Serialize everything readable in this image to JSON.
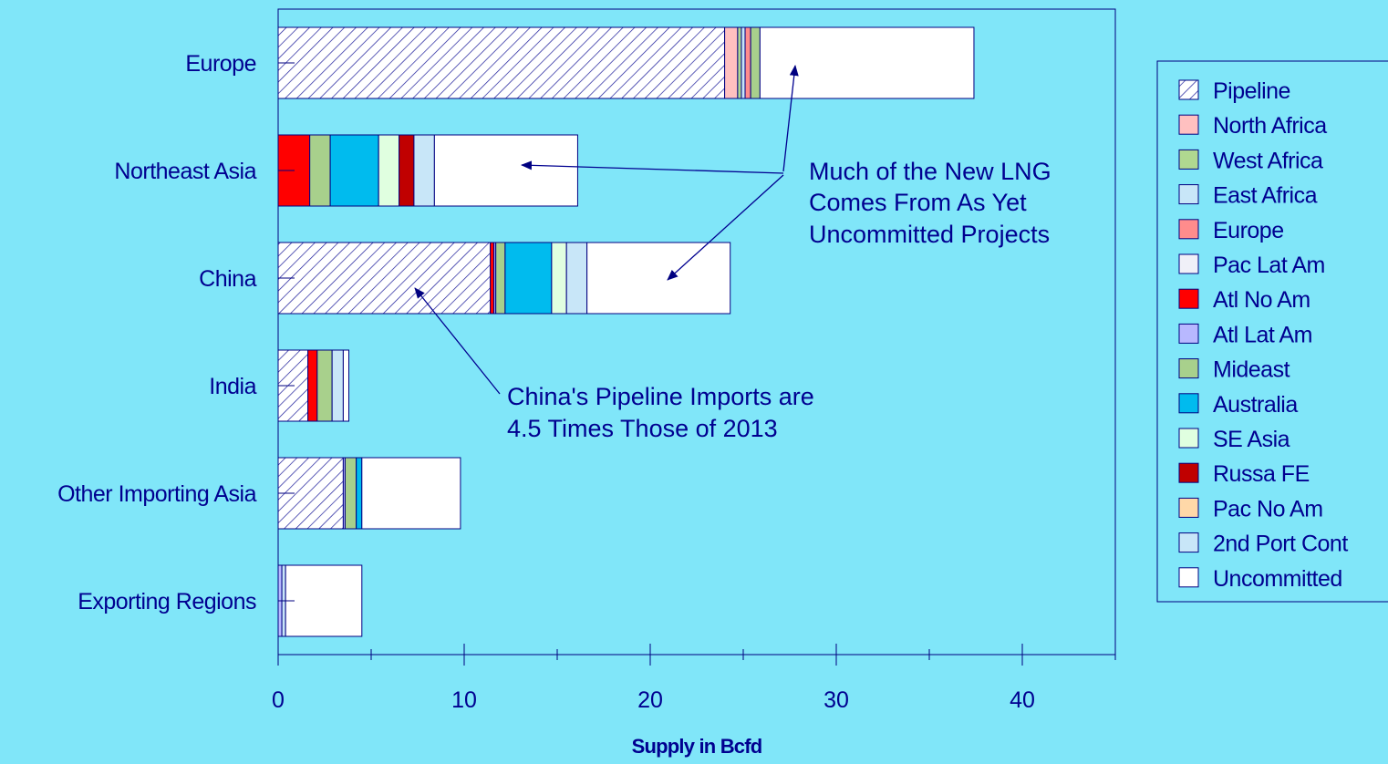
{
  "chart_data": {
    "type": "bar",
    "orientation": "horizontal",
    "stacked": true,
    "title": "",
    "xlabel": "Supply in Bcfd",
    "ylabel": "",
    "xlim": [
      0,
      45
    ],
    "x_ticks": [
      0,
      10,
      20,
      30,
      40
    ],
    "x_tick_labels": [
      "0",
      "10",
      "20",
      "30",
      "40"
    ],
    "grid": false,
    "legend_position": "right",
    "categories": [
      "Europe",
      "Northeast Asia",
      "China",
      "India",
      "Other Importing Asia",
      "Exporting Regions"
    ],
    "series": [
      {
        "name": "Pipeline",
        "color": "#FFFFFF",
        "pattern": "hatch",
        "values": [
          24.0,
          0,
          11.4,
          1.6,
          3.5,
          0
        ]
      },
      {
        "name": "North Africa",
        "color": "#FFC0C0",
        "values": [
          0.7,
          0,
          0,
          0,
          0,
          0
        ]
      },
      {
        "name": "West Africa",
        "color": "#B0D890",
        "values": [
          0.2,
          0,
          0,
          0,
          0,
          0
        ]
      },
      {
        "name": "East Africa",
        "color": "#C8E6F8",
        "values": [
          0.2,
          0,
          0,
          0,
          0,
          0
        ]
      },
      {
        "name": "Europe",
        "color": "#FF8C8C",
        "values": [
          0.3,
          0,
          0,
          0,
          0,
          0
        ]
      },
      {
        "name": "Pac Lat Am",
        "color": "#F0F0F8",
        "values": [
          0,
          0,
          0,
          0,
          0,
          0
        ]
      },
      {
        "name": "Atl No Am",
        "color": "#FF0000",
        "values": [
          0,
          1.7,
          0.2,
          0.5,
          0,
          0
        ]
      },
      {
        "name": "Atl Lat Am",
        "color": "#B8B8FF",
        "values": [
          0,
          0,
          0.1,
          0,
          0.1,
          0.2
        ]
      },
      {
        "name": "Mideast",
        "color": "#A8D08C",
        "values": [
          0.5,
          1.1,
          0.5,
          0.8,
          0.6,
          0
        ]
      },
      {
        "name": "Australia",
        "color": "#00BBEE",
        "values": [
          0,
          2.6,
          2.5,
          0,
          0.3,
          0
        ]
      },
      {
        "name": "SE Asia",
        "color": "#E0FFE0",
        "values": [
          0,
          1.1,
          0.8,
          0,
          0,
          0
        ]
      },
      {
        "name": "Russa FE",
        "color": "#C00000",
        "values": [
          0,
          0.8,
          0,
          0,
          0,
          0
        ]
      },
      {
        "name": "Pac No Am",
        "color": "#FFD8A8",
        "values": [
          0,
          0,
          0,
          0,
          0,
          0
        ]
      },
      {
        "name": "2nd Port Cont",
        "color": "#C8E6F8",
        "values": [
          0,
          1.1,
          1.1,
          0.6,
          0,
          0.2
        ]
      },
      {
        "name": "Uncommitted",
        "color": "#FFFFFF",
        "values": [
          11.5,
          7.7,
          7.7,
          0.3,
          5.3,
          4.1
        ]
      }
    ],
    "annotations": [
      {
        "text_lines": [
          "Much of the New LNG",
          "Comes From As Yet",
          "Uncommitted Projects"
        ]
      },
      {
        "text_lines": [
          "China's Pipeline Imports are",
          "4.5 Times Those of 2013"
        ]
      }
    ]
  }
}
